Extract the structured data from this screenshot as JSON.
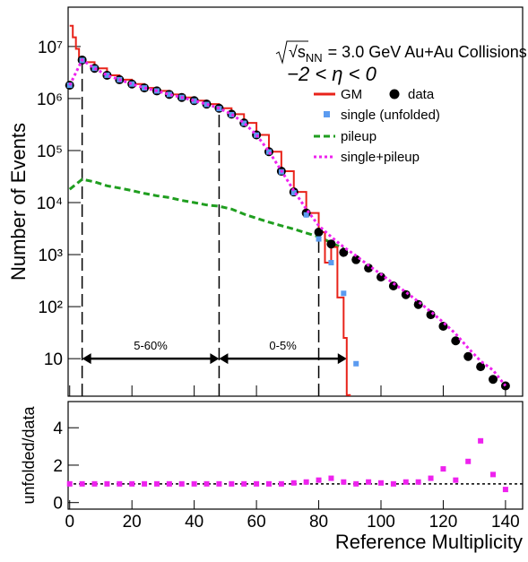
{
  "chart_data": {
    "type": "ratio-panel-log",
    "title_prefix": "√s",
    "title_subscript": "NN",
    "title_rest": "= 3.0 GeV Au+Au Collisions",
    "subtitle": "−2 < η < 0",
    "ylabel": "Number of Events",
    "ratio_ylabel": "unfolded/data",
    "xlabel": "Reference Multiplicity",
    "xlim": [
      -0.5,
      145.5
    ],
    "xticks": [
      0,
      20,
      40,
      60,
      80,
      100,
      120,
      140
    ],
    "ylim": [
      1.9,
      57000000
    ],
    "log_y": true,
    "yticks": [
      10,
      {
        "value": 100,
        "label": "10²"
      },
      {
        "value": 1000,
        "label": "10³"
      },
      {
        "value": 10000,
        "label": "10⁴"
      },
      {
        "value": 100000,
        "label": "10⁵"
      },
      {
        "value": 1000000,
        "label": "10⁶"
      },
      {
        "value": 10000000,
        "label": "10⁷"
      }
    ],
    "ratio_ylim": [
      -0.35,
      5.4
    ],
    "ratio_yticks": [
      0,
      2,
      4
    ],
    "ratio_ref_line": 1,
    "cuts": [
      4,
      48,
      80
    ],
    "arrow_level": 10,
    "arrows": [
      {
        "from": 4,
        "to": 48,
        "label": "5-60%"
      },
      {
        "from": 48,
        "to": 89,
        "label": "0-5%"
      }
    ],
    "series": [
      {
        "name": "GM",
        "color": "#e8231a",
        "style": "step",
        "x": [
          0,
          1,
          2,
          3,
          4,
          8,
          12,
          16,
          20,
          24,
          28,
          32,
          36,
          40,
          44,
          48,
          52,
          56,
          60,
          64,
          68,
          72,
          76,
          80,
          82,
          84,
          86,
          88,
          89
        ],
        "values": [
          25000000,
          15000000,
          9000000,
          6000000,
          5000000,
          3800000,
          2800000,
          2300000,
          1900000,
          1600000,
          1400000,
          1200000,
          1050000,
          910000,
          780000,
          650000,
          500000,
          340000,
          200000,
          95000,
          40000,
          16000,
          6300,
          2700,
          700,
          1400,
          150,
          25,
          2
        ]
      },
      {
        "name": "data",
        "color": "#000000",
        "style": "points",
        "x": [
          0,
          4,
          8,
          12,
          16,
          20,
          24,
          28,
          32,
          36,
          40,
          44,
          48,
          52,
          56,
          60,
          64,
          68,
          72,
          76,
          80,
          84,
          88,
          92,
          96,
          100,
          104,
          108,
          112,
          116,
          120,
          124,
          128,
          132,
          136,
          140
        ],
        "values": [
          1800000,
          5500000,
          3800000,
          2800000,
          2300000,
          1900000,
          1600000,
          1400000,
          1200000,
          1050000,
          910000,
          780000,
          650000,
          500000,
          340000,
          200000,
          95000,
          40000,
          16000,
          6300,
          2700,
          1600,
          1100,
          800,
          550,
          370,
          250,
          170,
          110,
          70,
          42,
          22,
          11,
          7,
          4,
          3
        ]
      },
      {
        "name": "single (unfolded)",
        "color": "#5b9bf0",
        "style": "squares",
        "x": [
          0,
          4,
          8,
          12,
          16,
          20,
          24,
          28,
          32,
          36,
          40,
          44,
          48,
          52,
          56,
          60,
          64,
          68,
          72,
          76,
          80,
          84,
          88,
          92
        ],
        "values": [
          1800000,
          5400000,
          3800000,
          2800000,
          2300000,
          1900000,
          1600000,
          1400000,
          1200000,
          1050000,
          900000,
          770000,
          640000,
          490000,
          335000,
          198000,
          94000,
          39000,
          15500,
          5800,
          2000,
          700,
          180,
          8
        ]
      },
      {
        "name": "pileup",
        "color": "#1f9e1f",
        "style": "dashed",
        "x": [
          0,
          4,
          8,
          12,
          16,
          20,
          24,
          28,
          32,
          36,
          40,
          44,
          48,
          52,
          56,
          60,
          64,
          68,
          72,
          76,
          80,
          84,
          88
        ],
        "values": [
          18000,
          28000,
          25000,
          21000,
          19000,
          17000,
          15000,
          13500,
          12500,
          11000,
          10000,
          9000,
          8500,
          7500,
          6000,
          5000,
          4200,
          3600,
          3100,
          2600,
          2200,
          1700,
          1300
        ]
      },
      {
        "name": "single+pileup",
        "color": "#ee22ee",
        "style": "dotted",
        "x": [
          0,
          4,
          8,
          12,
          16,
          20,
          24,
          28,
          32,
          36,
          40,
          44,
          48,
          52,
          56,
          60,
          64,
          68,
          72,
          76,
          80,
          84,
          88,
          92,
          96,
          100,
          104,
          108,
          112,
          116,
          120,
          124,
          128,
          132,
          136,
          140
        ],
        "values": [
          1800000,
          5500000,
          3800000,
          2800000,
          2300000,
          1900000,
          1600000,
          1400000,
          1200000,
          1050000,
          910000,
          780000,
          650000,
          500000,
          340000,
          200000,
          96000,
          41000,
          17000,
          7500,
          3600,
          2200,
          1400,
          950,
          620,
          420,
          280,
          190,
          125,
          80,
          50,
          30,
          16,
          9,
          6,
          3
        ]
      }
    ],
    "ratio": {
      "color": "#ee22ee",
      "x": [
        0,
        4,
        8,
        12,
        16,
        20,
        24,
        28,
        32,
        36,
        40,
        44,
        48,
        52,
        56,
        60,
        64,
        68,
        72,
        76,
        80,
        84,
        88,
        92,
        96,
        100,
        104,
        108,
        112,
        116,
        120,
        124,
        128,
        132,
        136,
        140
      ],
      "values": [
        1.0,
        1.0,
        1.0,
        1.0,
        1.0,
        1.0,
        1.0,
        1.0,
        1.0,
        1.0,
        1.0,
        1.0,
        1.0,
        1.0,
        1.0,
        1.0,
        1.0,
        1.0,
        1.05,
        1.1,
        1.2,
        1.3,
        1.1,
        1.0,
        1.1,
        1.05,
        1.0,
        1.1,
        1.1,
        1.3,
        1.8,
        1.2,
        2.2,
        3.3,
        1.5,
        0.7
      ]
    }
  }
}
